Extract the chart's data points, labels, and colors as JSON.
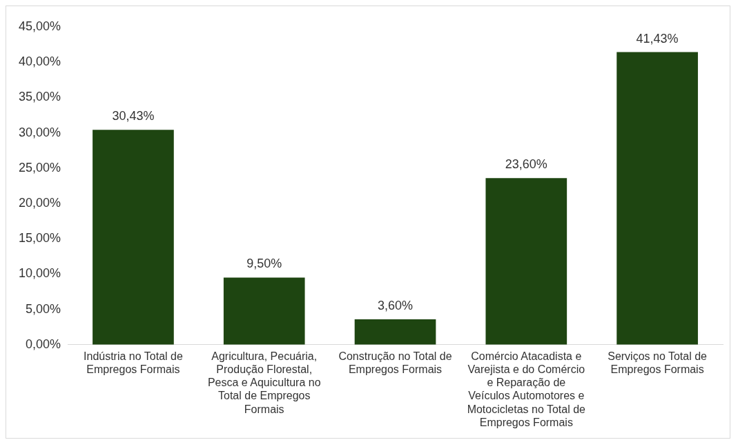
{
  "chart_data": {
    "type": "bar",
    "categories": [
      "Indústria no Total de Empregos Formais",
      "Agricultura, Pecuária, Produção Florestal, Pesca e Aquicultura no Total de Empregos Formais",
      "Construção no Total de Empregos Formais",
      "Comércio Atacadista e Varejista e do Comércio e Reparação de Veículos Automotores e Motocicletas no Total de Empregos Formais",
      "Serviços no Total de Empregos Formais"
    ],
    "values": [
      30.43,
      9.5,
      3.6,
      23.6,
      41.43
    ],
    "value_labels": [
      "30,43%",
      "9,50%",
      "3,60%",
      "23,60%",
      "41,43%"
    ],
    "color": "#1e4511",
    "ylim": [
      0,
      45
    ],
    "yticks": [
      {
        "value": 0,
        "label": "0,00%"
      },
      {
        "value": 5,
        "label": "5,00%"
      },
      {
        "value": 10,
        "label": "10,00%"
      },
      {
        "value": 15,
        "label": "15,00%"
      },
      {
        "value": 20,
        "label": "20,00%"
      },
      {
        "value": 25,
        "label": "25,00%"
      },
      {
        "value": 30,
        "label": "30,00%"
      },
      {
        "value": 35,
        "label": "35,00%"
      },
      {
        "value": 40,
        "label": "40,00%"
      },
      {
        "value": 45,
        "label": "45,00%"
      }
    ],
    "grid": false,
    "legend": false
  }
}
